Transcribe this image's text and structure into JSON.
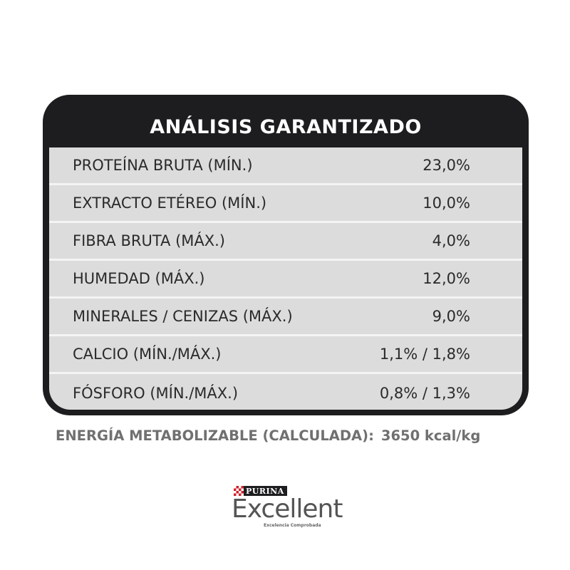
{
  "table": {
    "title": "ANÁLISIS GARANTIZADO",
    "rows": [
      {
        "label": "PROTEÍNA BRUTA (MÍN.)",
        "value": "23,0%"
      },
      {
        "label": "EXTRACTO ETÉREO (MÍN.)",
        "value": "10,0%"
      },
      {
        "label": "FIBRA BRUTA (MÁX.)",
        "value": "4,0%"
      },
      {
        "label": "HUMEDAD (MÁX.)",
        "value": "12,0%"
      },
      {
        "label": "MINERALES / CENIZAS (MÁX.)",
        "value": "9,0%"
      },
      {
        "label": "CALCIO (MÍN./MÁX.)",
        "value": "1,1% / 1,8%"
      },
      {
        "label": "FÓSFORO (MÍN./MÁX.)",
        "value": "0,8% / 1,3%"
      }
    ]
  },
  "energy": {
    "label": "ENERGÍA METABOLIZABLE (CALCULADA):",
    "value": "3650 kcal/kg"
  },
  "logo": {
    "maker": "PURINA",
    "brand": "Excellent",
    "tagline": "Excelencia Comprobada"
  },
  "colors": {
    "frame": "#1d1d1f",
    "rows": "#dcdcdc",
    "energy_text": "#707070"
  }
}
